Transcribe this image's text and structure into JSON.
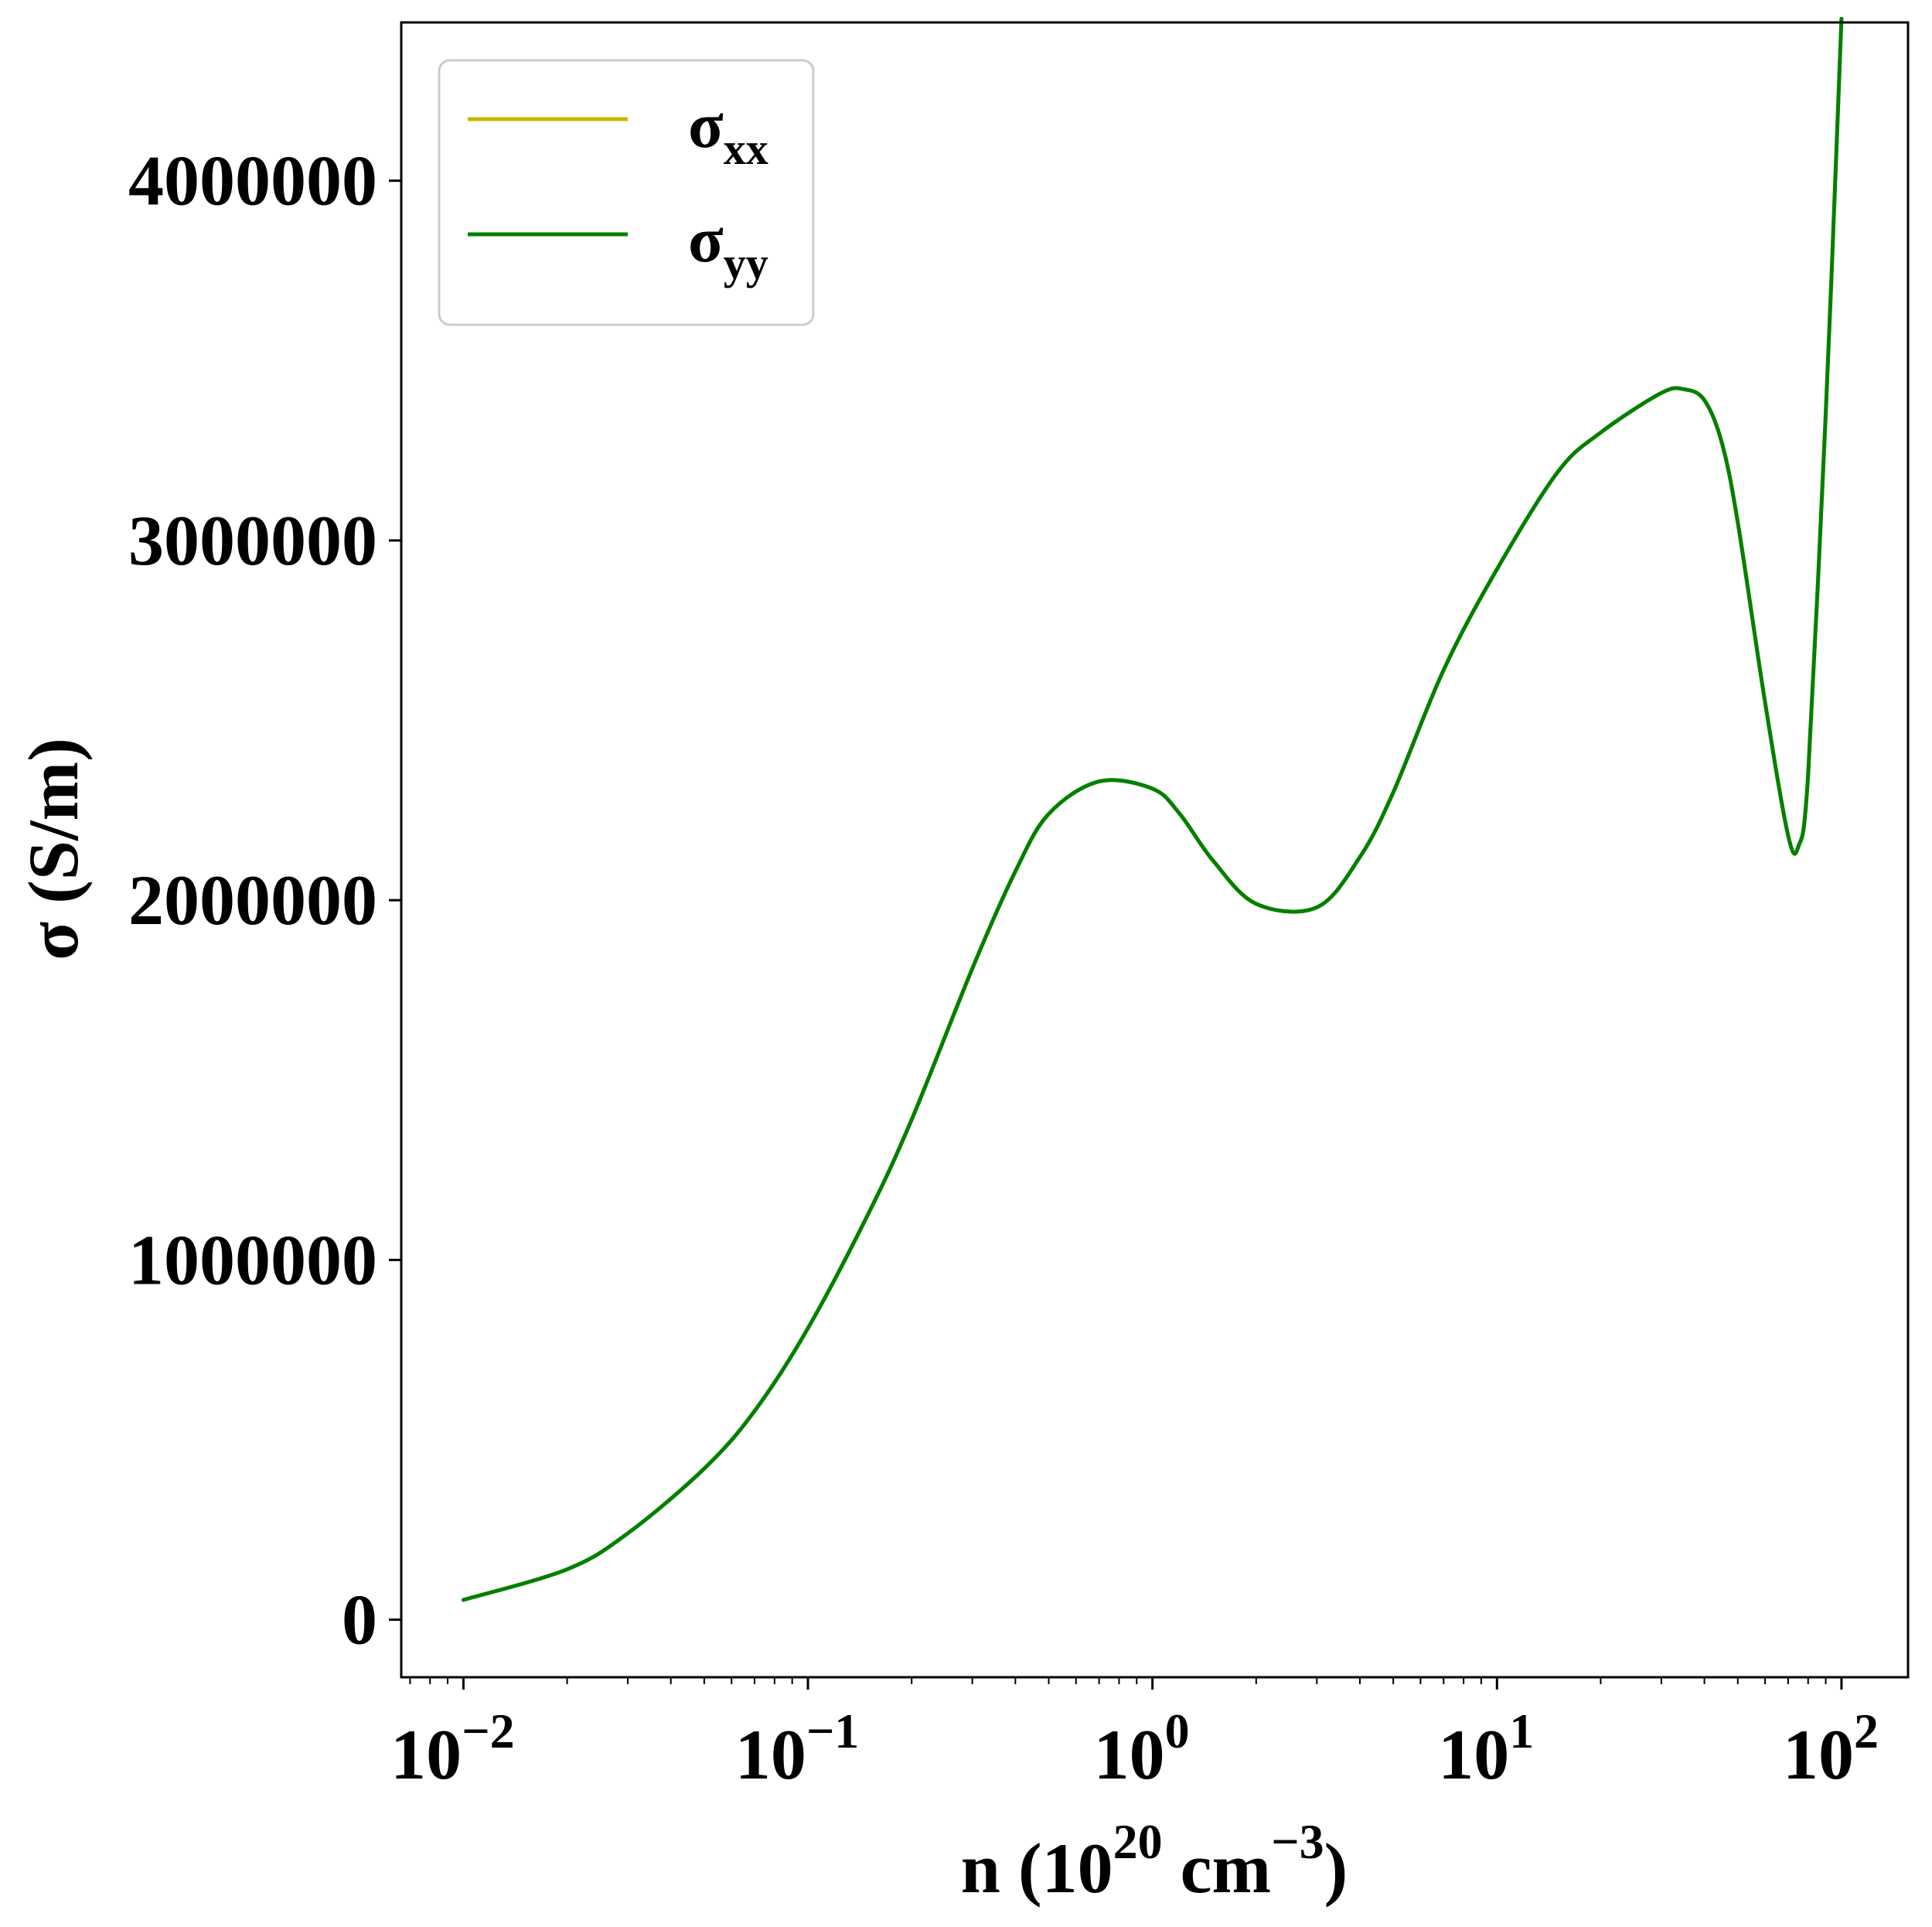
{
  "chart_data": {
    "type": "line",
    "xlabel": {
      "base": "n (10",
      "exp1": "20",
      "mid": " cm",
      "exp2": "−3",
      "end": ")"
    },
    "ylabel": "σ (S/m)",
    "x_scale": "log",
    "xlim": [
      0.0066,
      156
    ],
    "ylim": [
      -160000,
      4440000
    ],
    "x_ticks": [
      {
        "value": 0.01,
        "base": "10",
        "exp": "−2"
      },
      {
        "value": 0.1,
        "base": "10",
        "exp": "−1"
      },
      {
        "value": 1,
        "base": "10",
        "exp": "0"
      },
      {
        "value": 10,
        "base": "10",
        "exp": "1"
      },
      {
        "value": 100,
        "base": "10",
        "exp": "2"
      }
    ],
    "y_ticks": [
      {
        "value": 0,
        "label": "0"
      },
      {
        "value": 1000000,
        "label": "1000000"
      },
      {
        "value": 2000000,
        "label": "2000000"
      },
      {
        "value": 3000000,
        "label": "3000000"
      },
      {
        "value": 4000000,
        "label": "4000000"
      }
    ],
    "grid": false,
    "legend_position": "upper-left",
    "series": [
      {
        "name": "σ_xx",
        "label_base": "σ",
        "label_sub": "xx",
        "color": "#c8b400",
        "x": [
          0.01,
          0.02,
          0.03,
          0.05,
          0.07,
          0.1,
          0.15,
          0.2,
          0.3,
          0.4,
          0.5,
          0.7,
          1.0,
          1.2,
          1.5,
          2.0,
          3.0,
          4.0,
          5.0,
          7.0,
          10.0,
          15.0,
          20.0,
          30.0,
          35.0,
          40.0,
          45.0,
          50.0,
          60.0,
          70.0,
          75.0,
          80.0,
          90.0,
          95.0,
          100.0
        ],
        "y": [
          55000,
          140000,
          240000,
          420000,
          580000,
          810000,
          1130000,
          1390000,
          1810000,
          2080000,
          2240000,
          2330000,
          2310000,
          2240000,
          2110000,
          1990000,
          1980000,
          2120000,
          2300000,
          2640000,
          2920000,
          3190000,
          3300000,
          3410000,
          3420000,
          3390000,
          3270000,
          3050000,
          2550000,
          2180000,
          2150000,
          2350000,
          3350000,
          3900000,
          4450000
        ]
      },
      {
        "name": "σ_yy",
        "label_base": "σ",
        "label_sub": "yy",
        "color": "#008000",
        "x": [
          0.01,
          0.02,
          0.03,
          0.05,
          0.07,
          0.1,
          0.15,
          0.2,
          0.3,
          0.4,
          0.5,
          0.7,
          1.0,
          1.2,
          1.5,
          2.0,
          3.0,
          4.0,
          5.0,
          7.0,
          10.0,
          15.0,
          20.0,
          30.0,
          35.0,
          40.0,
          45.0,
          50.0,
          60.0,
          70.0,
          75.0,
          80.0,
          90.0,
          95.0,
          100.0
        ],
        "y": [
          55000,
          140000,
          240000,
          420000,
          580000,
          810000,
          1130000,
          1390000,
          1810000,
          2080000,
          2240000,
          2330000,
          2310000,
          2240000,
          2110000,
          1990000,
          1980000,
          2120000,
          2300000,
          2640000,
          2920000,
          3190000,
          3300000,
          3410000,
          3420000,
          3390000,
          3270000,
          3050000,
          2550000,
          2180000,
          2150000,
          2350000,
          3350000,
          3900000,
          4450000
        ]
      }
    ]
  }
}
